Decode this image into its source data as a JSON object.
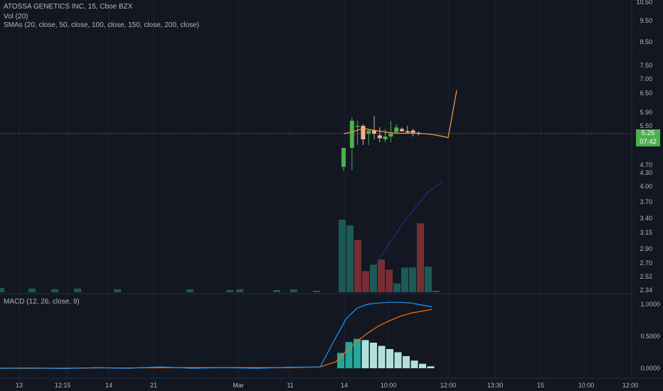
{
  "header": {
    "symbol_line": "ATOSSA GENETICS INC, 15, Cboe BZX",
    "vol_line": "Vol (20)",
    "sma_line": "SMAs (20, close, 50, close, 100, close, 150, close, 200, close)",
    "macd_line": "MACD (12, 26, close, 9)"
  },
  "price_tags": {
    "last_price": "5.25",
    "countdown": "07:42"
  },
  "colors": {
    "background": "#131722",
    "up": "#4caf50",
    "down": "#ffb083",
    "vol_up": "#1b5e5a",
    "vol_down": "#7a2f36",
    "sma_fast": "#ff9a3c",
    "sma_slow": "#1f2e8c",
    "macd": "#2196f3",
    "signal": "#ff6d00",
    "hist_pos": "#26a69a",
    "hist_pos_fading": "#b2dfdb",
    "grid": "#1e222d",
    "axis_text": "#b2b5be"
  },
  "chart_data": [
    {
      "type": "candlestick",
      "ylim": [
        2.34,
        10.5
      ],
      "y_axis_labels": [
        "10.50",
        "9.50",
        "8.50",
        "7.50",
        "7.00",
        "6.50",
        "5.90",
        "5.50",
        "5.25",
        "4.70",
        "4.30",
        "4.00",
        "3.70",
        "3.40",
        "3.15",
        "2.90",
        "2.70",
        "2.52",
        "2.34"
      ],
      "x_axis_labels": [
        "13",
        "12:15",
        "14",
        "21",
        "Mar",
        "11",
        "14",
        "10:00",
        "12:00",
        "13:30",
        "15",
        "10:00",
        "12:00"
      ],
      "last_price_line": 5.25,
      "candles": [
        {
          "open": 4.6,
          "high": 5.0,
          "low": 4.4,
          "close": 5.0
        },
        {
          "open": 5.0,
          "high": 5.75,
          "low": 4.45,
          "close": 5.65
        },
        {
          "open": 5.5,
          "high": 5.65,
          "low": 5.05,
          "close": 5.5
        },
        {
          "open": 5.5,
          "high": 5.55,
          "low": 5.05,
          "close": 5.15
        },
        {
          "open": 5.25,
          "high": 5.4,
          "low": 5.05,
          "close": 5.35
        },
        {
          "open": 5.35,
          "high": 5.8,
          "low": 5.15,
          "close": 5.25
        },
        {
          "open": 5.22,
          "high": 5.45,
          "low": 5.1,
          "close": 5.17
        },
        {
          "open": 5.15,
          "high": 5.4,
          "low": 5.1,
          "close": 5.2
        },
        {
          "open": 5.2,
          "high": 5.65,
          "low": 5.1,
          "close": 5.25
        },
        {
          "open": 5.3,
          "high": 5.55,
          "low": 5.25,
          "close": 5.45
        },
        {
          "open": 5.4,
          "high": 5.45,
          "low": 5.3,
          "close": 5.33
        },
        {
          "open": 5.33,
          "high": 5.5,
          "low": 5.25,
          "close": 5.3
        },
        {
          "open": 5.35,
          "high": 5.4,
          "low": 5.2,
          "close": 5.28
        },
        {
          "open": 5.28,
          "high": 5.32,
          "low": 5.22,
          "close": 5.25
        }
      ],
      "sma_fast": [
        5.25,
        5.3,
        5.38,
        5.4,
        5.36,
        5.33,
        5.29,
        5.27,
        5.26,
        5.27,
        5.26,
        5.25,
        5.24,
        5.22,
        5.18,
        6.6
      ],
      "sma_slow": [
        2.7,
        3.0,
        3.3,
        3.6,
        3.9,
        4.1
      ]
    },
    {
      "type": "bar",
      "name": "Vol (20)",
      "values": [
        0.06,
        0.05,
        0.04,
        0.05,
        0.04,
        0.04,
        0.03,
        0.04,
        0.03,
        0.04,
        0.02,
        1.0,
        0.92,
        0.72,
        0.29,
        0.38,
        0.45,
        0.31,
        0.12,
        0.34,
        0.34,
        0.95,
        0.35,
        0.02
      ],
      "directions": [
        "up",
        "up",
        "up",
        "up",
        "up",
        "up",
        "up",
        "up",
        "up",
        "up",
        "up",
        "up",
        "up",
        "down",
        "down",
        "up",
        "down",
        "down",
        "up",
        "up",
        "up",
        "down",
        "up",
        "up"
      ]
    },
    {
      "type": "line",
      "name": "MACD (12, 26, close, 9)",
      "ylim": [
        -0.05,
        1.05
      ],
      "y_axis_labels": [
        "1.0000",
        "0.5000",
        "0.0000"
      ],
      "macd": [
        0,
        0.005,
        -0.005,
        0.01,
        0.0,
        0.02,
        0.0,
        0.01,
        0.0,
        0.015,
        0.02,
        0.48,
        0.78,
        0.94,
        1.0,
        1.02,
        1.03,
        1.03,
        1.02,
        0.99,
        0.96
      ],
      "signal": [
        0,
        0.0,
        0.0,
        0.005,
        0.005,
        0.01,
        0.01,
        0.01,
        0.01,
        0.01,
        0.02,
        0.1,
        0.27,
        0.42,
        0.55,
        0.66,
        0.74,
        0.81,
        0.86,
        0.89,
        0.92
      ],
      "histogram": [
        0.24,
        0.41,
        0.46,
        0.44,
        0.4,
        0.35,
        0.3,
        0.25,
        0.19,
        0.12,
        0.07,
        0.03
      ]
    }
  ]
}
